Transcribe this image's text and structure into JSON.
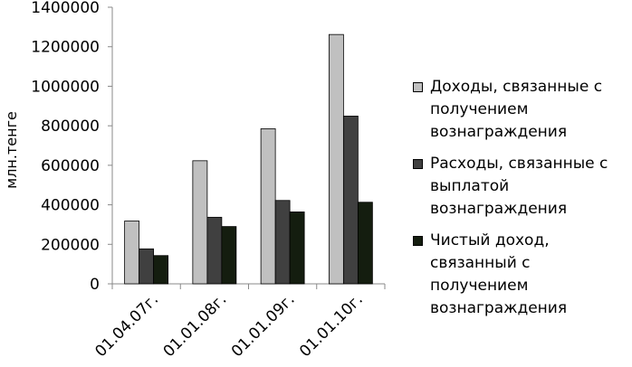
{
  "chart_data": {
    "type": "bar",
    "title": "",
    "xlabel": "",
    "ylabel": "млн.тенге",
    "ylim": [
      0,
      1400000
    ],
    "yticks": [
      0,
      200000,
      400000,
      600000,
      800000,
      1000000,
      1200000,
      1400000
    ],
    "grid": false,
    "legend_position": "right",
    "categories": [
      "01.04.07г.",
      "01.01.08г.",
      "01.01.09г.",
      "01.01.10г."
    ],
    "series": [
      {
        "name": "Доходы, связанные с получением вознаграждения",
        "color": "#c0c0c0",
        "values": [
          318000,
          623000,
          785000,
          1262000
        ]
      },
      {
        "name": "Расходы, связанные с выплатой вознаграждения",
        "color": "#404040",
        "values": [
          177000,
          337000,
          422000,
          849000
        ]
      },
      {
        "name": "Чистый доход, связанный с получением вознаграждения",
        "color": "#141d0f",
        "values": [
          143000,
          290000,
          364000,
          413000
        ]
      }
    ]
  }
}
